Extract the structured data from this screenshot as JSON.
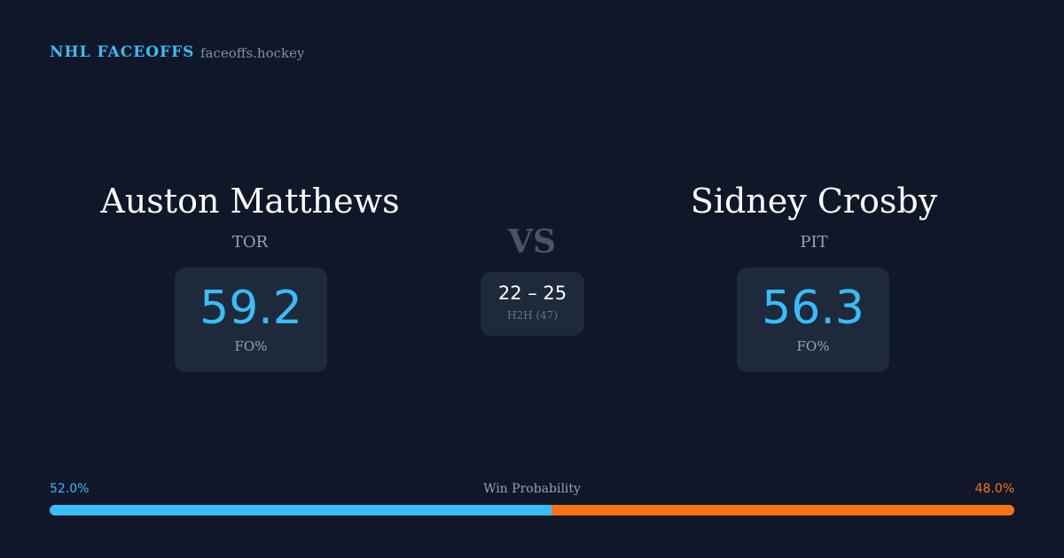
{
  "header": {
    "brand": "NHL FACEOFFS",
    "site": "faceoffs.hockey"
  },
  "players": [
    {
      "name": "Auston Matthews",
      "team": "TOR",
      "stat_value": "59.2",
      "stat_label": "FO%"
    },
    {
      "name": "Sidney Crosby",
      "team": "PIT",
      "stat_value": "56.3",
      "stat_label": "FO%"
    }
  ],
  "versus": "VS",
  "head_to_head": {
    "score": "22 – 25",
    "label": "H2H (47)"
  },
  "win_probability": {
    "label": "Win Probability",
    "values": [
      52.0,
      48.0
    ],
    "value_labels": [
      "52.0%",
      "48.0%"
    ],
    "colors": [
      "#38bdf8",
      "#f97316"
    ]
  }
}
